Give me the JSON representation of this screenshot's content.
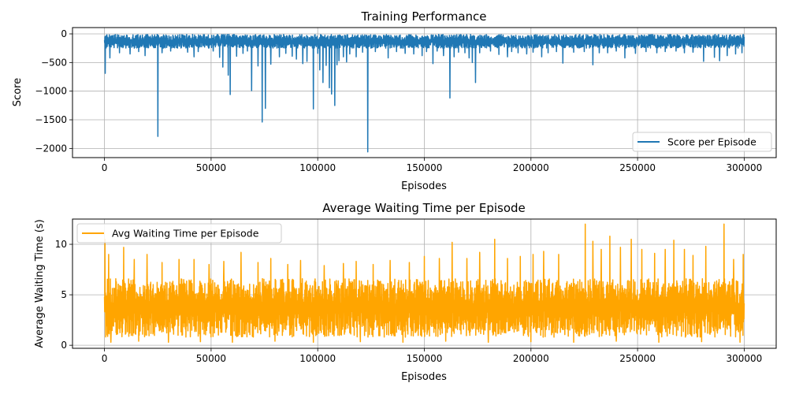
{
  "chart_data": [
    {
      "type": "line",
      "title": "Training Performance",
      "xlabel": "Episodes",
      "ylabel": "Score",
      "xlim": [
        -15000,
        315000
      ],
      "ylim": [
        -2160,
        110
      ],
      "xticks": [
        0,
        50000,
        100000,
        150000,
        200000,
        250000,
        300000
      ],
      "yticks": [
        0,
        -500,
        -1000,
        -1500,
        -2000
      ],
      "grid": true,
      "legend": "lower right",
      "series": [
        {
          "name": "Score per Episode",
          "color": "#1f77b4",
          "x_range": [
            0,
            300000
          ],
          "band": [
            -250,
            -10
          ],
          "spikes": [
            [
              300,
              -690
            ],
            [
              2500,
              -420
            ],
            [
              7000,
              -330
            ],
            [
              12000,
              -350
            ],
            [
              16000,
              -310
            ],
            [
              19000,
              -380
            ],
            [
              25000,
              -1790
            ],
            [
              27000,
              -330
            ],
            [
              31000,
              -300
            ],
            [
              39000,
              -320
            ],
            [
              42000,
              -400
            ],
            [
              44000,
              -310
            ],
            [
              51000,
              -300
            ],
            [
              54000,
              -410
            ],
            [
              55500,
              -580
            ],
            [
              58000,
              -720
            ],
            [
              59000,
              -1060
            ],
            [
              62000,
              -390
            ],
            [
              65000,
              -340
            ],
            [
              67000,
              -300
            ],
            [
              69000,
              -990
            ],
            [
              72000,
              -560
            ],
            [
              74000,
              -1540
            ],
            [
              75500,
              -1300
            ],
            [
              78000,
              -530
            ],
            [
              82000,
              -400
            ],
            [
              85000,
              -340
            ],
            [
              88000,
              -390
            ],
            [
              90000,
              -440
            ],
            [
              93000,
              -520
            ],
            [
              95000,
              -480
            ],
            [
              98000,
              -1310
            ],
            [
              100000,
              -340
            ],
            [
              101000,
              -630
            ],
            [
              102500,
              -850
            ],
            [
              104000,
              -550
            ],
            [
              105500,
              -940
            ],
            [
              106500,
              -1050
            ],
            [
              108000,
              -1250
            ],
            [
              109000,
              -540
            ],
            [
              110000,
              -470
            ],
            [
              112000,
              -400
            ],
            [
              113500,
              -490
            ],
            [
              115000,
              -350
            ],
            [
              118000,
              -400
            ],
            [
              121000,
              -320
            ],
            [
              123500,
              -2060
            ],
            [
              127000,
              -310
            ],
            [
              133000,
              -420
            ],
            [
              137000,
              -310
            ],
            [
              141000,
              -340
            ],
            [
              145000,
              -350
            ],
            [
              149000,
              -380
            ],
            [
              151000,
              -310
            ],
            [
              154000,
              -520
            ],
            [
              156000,
              -300
            ],
            [
              159000,
              -380
            ],
            [
              162000,
              -1120
            ],
            [
              164000,
              -400
            ],
            [
              166000,
              -320
            ],
            [
              169000,
              -330
            ],
            [
              171000,
              -420
            ],
            [
              172500,
              -500
            ],
            [
              174000,
              -850
            ],
            [
              176000,
              -330
            ],
            [
              181000,
              -300
            ],
            [
              185000,
              -360
            ],
            [
              189000,
              -400
            ],
            [
              191000,
              -310
            ],
            [
              194000,
              -330
            ],
            [
              198000,
              -350
            ],
            [
              201000,
              -320
            ],
            [
              205000,
              -400
            ],
            [
              208000,
              -330
            ],
            [
              212000,
              -310
            ],
            [
              215000,
              -510
            ],
            [
              220000,
              -320
            ],
            [
              225000,
              -310
            ],
            [
              229000,
              -540
            ],
            [
              232000,
              -330
            ],
            [
              236000,
              -330
            ],
            [
              240000,
              -300
            ],
            [
              244000,
              -420
            ],
            [
              249000,
              -340
            ],
            [
              254000,
              -310
            ],
            [
              259000,
              -330
            ],
            [
              263000,
              -310
            ],
            [
              268000,
              -300
            ],
            [
              272000,
              -330
            ],
            [
              276000,
              -320
            ],
            [
              281000,
              -480
            ],
            [
              286000,
              -410
            ],
            [
              288500,
              -470
            ],
            [
              292000,
              -380
            ],
            [
              296000,
              -350
            ],
            [
              299000,
              -330
            ]
          ]
        }
      ]
    },
    {
      "type": "line",
      "title": "Average Waiting Time per Episode",
      "xlabel": "Episodes",
      "ylabel": "Average Waiting Time (s)",
      "xlim": [
        -15000,
        315000
      ],
      "ylim": [
        -0.3,
        12.5
      ],
      "xticks": [
        0,
        50000,
        100000,
        150000,
        200000,
        250000,
        300000
      ],
      "yticks": [
        0,
        5,
        10
      ],
      "grid": true,
      "legend": "upper left",
      "series": [
        {
          "name": "Avg Waiting Time per Episode",
          "color": "#ffa500",
          "x_range": [
            0,
            300000
          ],
          "band": [
            0.8,
            6.6
          ],
          "spikes_high": [
            [
              200,
              10.5
            ],
            [
              2000,
              9.0
            ],
            [
              9000,
              9.7
            ],
            [
              14000,
              8.5
            ],
            [
              20000,
              9.0
            ],
            [
              27000,
              8.2
            ],
            [
              35000,
              8.5
            ],
            [
              42000,
              8.5
            ],
            [
              49000,
              8.0
            ],
            [
              56000,
              8.3
            ],
            [
              64000,
              9.2
            ],
            [
              72000,
              8.2
            ],
            [
              78000,
              8.6
            ],
            [
              86000,
              8.0
            ],
            [
              92000,
              8.4
            ],
            [
              103000,
              7.9
            ],
            [
              112000,
              8.1
            ],
            [
              118000,
              8.3
            ],
            [
              126000,
              8.0
            ],
            [
              134000,
              8.4
            ],
            [
              143000,
              8.2
            ],
            [
              150000,
              8.8
            ],
            [
              157000,
              8.6
            ],
            [
              163000,
              10.2
            ],
            [
              170000,
              8.6
            ],
            [
              176000,
              9.2
            ],
            [
              183000,
              10.5
            ],
            [
              189000,
              8.6
            ],
            [
              195000,
              8.8
            ],
            [
              201000,
              9.0
            ],
            [
              206000,
              9.3
            ],
            [
              213000,
              9.0
            ],
            [
              220000,
              9.6
            ],
            [
              225500,
              12.0
            ],
            [
              229000,
              10.3
            ],
            [
              233000,
              9.5
            ],
            [
              237000,
              10.8
            ],
            [
              242000,
              9.7
            ],
            [
              247000,
              10.5
            ],
            [
              252000,
              9.5
            ],
            [
              258000,
              9.1
            ],
            [
              263000,
              9.5
            ],
            [
              267000,
              10.4
            ],
            [
              272000,
              9.5
            ],
            [
              276000,
              8.9
            ],
            [
              282000,
              9.8
            ],
            [
              290500,
              12.0
            ],
            [
              295000,
              8.5
            ],
            [
              299500,
              9.0
            ]
          ],
          "spikes_low": [
            [
              3000,
              0.3
            ],
            [
              16000,
              0.4
            ],
            [
              30000,
              0.3
            ],
            [
              45000,
              0.35
            ],
            [
              60000,
              0.3
            ],
            [
              80000,
              0.4
            ],
            [
              98000,
              0.3
            ],
            [
              120000,
              0.35
            ],
            [
              140000,
              0.3
            ],
            [
              160000,
              0.4
            ],
            [
              180000,
              0.3
            ],
            [
              200000,
              0.35
            ],
            [
              220000,
              0.3
            ],
            [
              240000,
              0.4
            ],
            [
              260000,
              0.3
            ],
            [
              280000,
              0.35
            ],
            [
              298000,
              0.3
            ]
          ]
        }
      ]
    }
  ]
}
